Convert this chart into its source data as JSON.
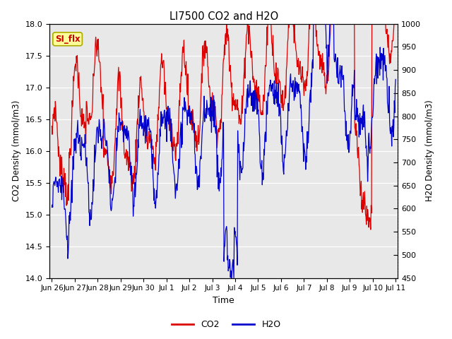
{
  "title": "LI7500 CO2 and H2O",
  "xlabel": "Time",
  "ylabel_left": "CO2 Density (mmol/m3)",
  "ylabel_right": "H2O Density (mmol/m3)",
  "ylim_left": [
    14.0,
    18.0
  ],
  "ylim_right": [
    450,
    1000
  ],
  "yticks_left": [
    14.0,
    14.5,
    15.0,
    15.5,
    16.0,
    16.5,
    17.0,
    17.5,
    18.0
  ],
  "yticks_right": [
    450,
    500,
    550,
    600,
    650,
    700,
    750,
    800,
    850,
    900,
    950,
    1000
  ],
  "xtick_labels": [
    "Jun 26",
    "Jun 27",
    "Jun 28",
    "Jun 29",
    "Jun 30",
    "Jul 1",
    "Jul 2",
    "Jul 3",
    "Jul 4",
    "Jul 5",
    "Jul 6",
    "Jul 7",
    "Jul 8",
    "Jul 9",
    "Jul 10",
    "Jul 11"
  ],
  "color_co2": "#dd0000",
  "color_h2o": "#0000cc",
  "legend_co2": "CO2",
  "legend_h2o": "H2O",
  "annotation_text": "SI_flx",
  "annotation_color": "#cc0000",
  "annotation_bg": "#ffff99",
  "plot_bg": "#e8e8e8",
  "n_points": 800,
  "linewidth": 0.9
}
